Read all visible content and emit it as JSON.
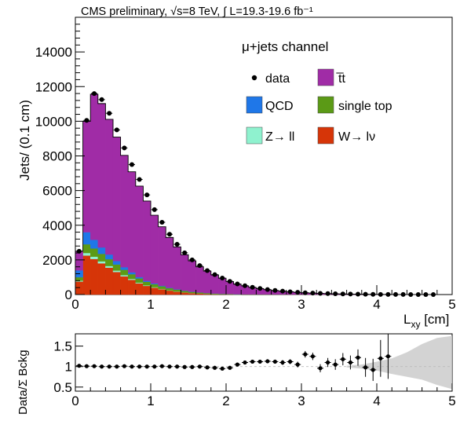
{
  "header": {
    "title": "CMS preliminary, √s=8 TeV, ∫ L=19.3-19.6 fb⁻¹"
  },
  "colors": {
    "ttbar": "#a02ca6",
    "qcd": "#1f77e8",
    "single_top": "#5b9a16",
    "zll": "#8ff2cf",
    "wlnu": "#d63508",
    "data": "#000000",
    "unc": "#c8c8c8"
  },
  "chart_data": [
    {
      "type": "stacked-histogram",
      "title": "μ+jets channel",
      "xlabel": "L_xy [cm]",
      "ylabel": "Jets/ (0.1 cm)",
      "xlim": [
        0,
        5
      ],
      "ylim": [
        0,
        16000
      ],
      "xticks": [
        "0",
        "1",
        "2",
        "3",
        "4",
        "5"
      ],
      "yticks": [
        "0",
        "2000",
        "4000",
        "6000",
        "8000",
        "10000",
        "12000",
        "14000"
      ],
      "bin_width": 0.1,
      "bin_edges_start": 0,
      "legend": [
        {
          "key": "data",
          "label": "data",
          "style": "marker"
        },
        {
          "key": "ttbar",
          "label": "t̅t",
          "style": "fill"
        },
        {
          "key": "qcd",
          "label": "QCD",
          "style": "fill"
        },
        {
          "key": "single_top",
          "label": "single top",
          "style": "fill"
        },
        {
          "key": "zll",
          "label": "Z→ ll",
          "style": "fill"
        },
        {
          "key": "wlnu",
          "label": "W→ lν",
          "style": "fill"
        }
      ],
      "series": [
        {
          "name": "W→lν",
          "key": "wlnu",
          "values": [
            750,
            2250,
            2050,
            1800,
            1550,
            1300,
            1050,
            850,
            650,
            500,
            400,
            310,
            230,
            170,
            120,
            80,
            55,
            35,
            20,
            10,
            5,
            0,
            0,
            0,
            0,
            0,
            0,
            0,
            0,
            0,
            0,
            0,
            0,
            0,
            0,
            0,
            0,
            0,
            0,
            0,
            0,
            0,
            0,
            0,
            0,
            0,
            0,
            0,
            0,
            0
          ]
        },
        {
          "name": "Z→ll",
          "key": "zll",
          "values": [
            50,
            150,
            140,
            120,
            100,
            85,
            70,
            55,
            45,
            35,
            28,
            22,
            17,
            13,
            10,
            7,
            5,
            4,
            3,
            2,
            1,
            1,
            0,
            0,
            0,
            0,
            0,
            0,
            0,
            0,
            0,
            0,
            0,
            0,
            0,
            0,
            0,
            0,
            0,
            0,
            0,
            0,
            0,
            0,
            0,
            0,
            0,
            0,
            0,
            0
          ]
        },
        {
          "name": "single top",
          "key": "single_top",
          "values": [
            200,
            500,
            470,
            430,
            390,
            350,
            310,
            270,
            235,
            200,
            170,
            145,
            120,
            100,
            85,
            70,
            57,
            46,
            37,
            30,
            24,
            19,
            15,
            12,
            9,
            7,
            5,
            4,
            3,
            2,
            2,
            1,
            1,
            1,
            0,
            0,
            0,
            0,
            0,
            0,
            0,
            0,
            0,
            0,
            0,
            0,
            0,
            0,
            0,
            0
          ]
        },
        {
          "name": "QCD",
          "key": "qcd",
          "values": [
            400,
            700,
            500,
            370,
            270,
            200,
            150,
            110,
            80,
            60,
            45,
            33,
            25,
            18,
            13,
            9,
            6,
            4,
            3,
            2,
            1,
            1,
            0,
            0,
            0,
            0,
            0,
            0,
            0,
            0,
            0,
            0,
            0,
            0,
            0,
            0,
            0,
            0,
            0,
            0,
            0,
            0,
            0,
            0,
            0,
            0,
            0,
            0,
            0,
            0
          ]
        },
        {
          "name": "t̅t",
          "key": "ttbar",
          "values": [
            1100,
            6400,
            8400,
            8300,
            7800,
            7150,
            6450,
            5800,
            5250,
            4600,
            3930,
            3400,
            2900,
            2450,
            2070,
            1780,
            1480,
            1270,
            1070,
            900,
            720,
            580,
            485,
            398,
            331,
            273,
            225,
            186,
            152,
            120,
            98,
            79,
            64,
            51,
            40,
            31,
            24,
            18,
            14,
            10,
            8,
            6,
            4,
            3,
            2,
            1,
            1,
            1,
            0,
            0
          ]
        }
      ],
      "data_values": [
        2500,
        10050,
        11600,
        11250,
        10460,
        9500,
        8460,
        7500,
        6640,
        5750,
        4900,
        4170,
        3480,
        2900,
        2410,
        2000,
        1670,
        1380,
        1150,
        950,
        760,
        610,
        510,
        420,
        350,
        288,
        237,
        196,
        160,
        128,
        104,
        84,
        68,
        54,
        43,
        34,
        26,
        20,
        15,
        11,
        8,
        6,
        4,
        3,
        2,
        1,
        1,
        1,
        0,
        0
      ]
    },
    {
      "type": "ratio",
      "ylabel": "Data/Σ Bckg",
      "xlim": [
        0,
        5
      ],
      "ylim": [
        0.4,
        1.8
      ],
      "xticks": [
        "0",
        "1",
        "2",
        "3",
        "4",
        "5"
      ],
      "yticks": [
        "0.5",
        "1",
        "1.5"
      ],
      "x": [
        0.05,
        0.15,
        0.25,
        0.35,
        0.45,
        0.55,
        0.65,
        0.75,
        0.85,
        0.95,
        1.05,
        1.15,
        1.25,
        1.35,
        1.45,
        1.55,
        1.65,
        1.75,
        1.85,
        1.95,
        2.05,
        2.15,
        2.25,
        2.35,
        2.45,
        2.55,
        2.65,
        2.75,
        2.85,
        2.95,
        3.05,
        3.15,
        3.25,
        3.35,
        3.45,
        3.55,
        3.65,
        3.75,
        3.85,
        3.95,
        4.05,
        4.15
      ],
      "values": [
        1.02,
        1.01,
        1.01,
        1.0,
        1.0,
        1.0,
        1.01,
        1.0,
        1.0,
        1.0,
        1.0,
        1.01,
        1.0,
        1.0,
        0.99,
        0.99,
        1.0,
        0.98,
        0.97,
        0.95,
        0.97,
        1.05,
        1.1,
        1.12,
        1.12,
        1.13,
        1.12,
        1.1,
        1.12,
        1.05,
        1.3,
        1.25,
        0.96,
        1.1,
        1.05,
        1.18,
        1.1,
        1.22,
        0.98,
        0.92,
        1.2,
        1.25
      ],
      "errors": [
        0.02,
        0.01,
        0.01,
        0.01,
        0.01,
        0.01,
        0.01,
        0.01,
        0.01,
        0.01,
        0.01,
        0.01,
        0.01,
        0.01,
        0.01,
        0.01,
        0.02,
        0.02,
        0.02,
        0.02,
        0.03,
        0.03,
        0.03,
        0.04,
        0.04,
        0.05,
        0.05,
        0.06,
        0.06,
        0.07,
        0.08,
        0.09,
        0.1,
        0.11,
        0.13,
        0.15,
        0.17,
        0.2,
        0.23,
        0.27,
        0.45,
        0.55
      ],
      "unc_band": {
        "x": [
          3.6,
          3.8,
          4.0,
          4.2,
          4.4,
          4.6,
          4.8,
          5.0
        ],
        "low": [
          0.98,
          0.95,
          0.9,
          0.82,
          0.75,
          0.68,
          0.55,
          0.45
        ],
        "high": [
          1.02,
          1.05,
          1.12,
          1.2,
          1.35,
          1.55,
          1.7,
          1.75
        ]
      }
    }
  ]
}
